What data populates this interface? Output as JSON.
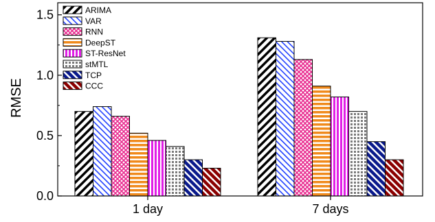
{
  "chart_data": {
    "type": "bar",
    "categories": [
      "1 day",
      "7 days"
    ],
    "ylabel": "RMSE",
    "xlabel": "",
    "ylim": [
      0.0,
      1.6
    ],
    "yticks": [
      "0.0",
      "0.5",
      "1.0",
      "1.5"
    ],
    "legend_position": "top-left",
    "grid": false,
    "series": [
      {
        "name": "ARIMA",
        "values": [
          0.7,
          1.31
        ],
        "color": "#000000",
        "pattern": "diag-black"
      },
      {
        "name": "VAR",
        "values": [
          0.74,
          1.28
        ],
        "color": "#1f3fff",
        "pattern": "diag-blue"
      },
      {
        "name": "RNN",
        "values": [
          0.66,
          1.13
        ],
        "color": "#e8298e",
        "pattern": "cross-pink"
      },
      {
        "name": "DeepST",
        "values": [
          0.52,
          0.91
        ],
        "color": "#f08a1c",
        "pattern": "hlines-orange"
      },
      {
        "name": "ST-ResNet",
        "values": [
          0.46,
          0.82
        ],
        "color": "#e11ee6",
        "pattern": "vlines-magenta"
      },
      {
        "name": "stMTL",
        "values": [
          0.41,
          0.7
        ],
        "color": "#8a8a8a",
        "pattern": "grid-gray"
      },
      {
        "name": "TCP",
        "values": [
          0.3,
          0.45
        ],
        "color": "#0a1a8c",
        "pattern": "diag-navy"
      },
      {
        "name": "CCC",
        "values": [
          0.23,
          0.3
        ],
        "color": "#8b0000",
        "pattern": "diag-darkred"
      }
    ]
  }
}
